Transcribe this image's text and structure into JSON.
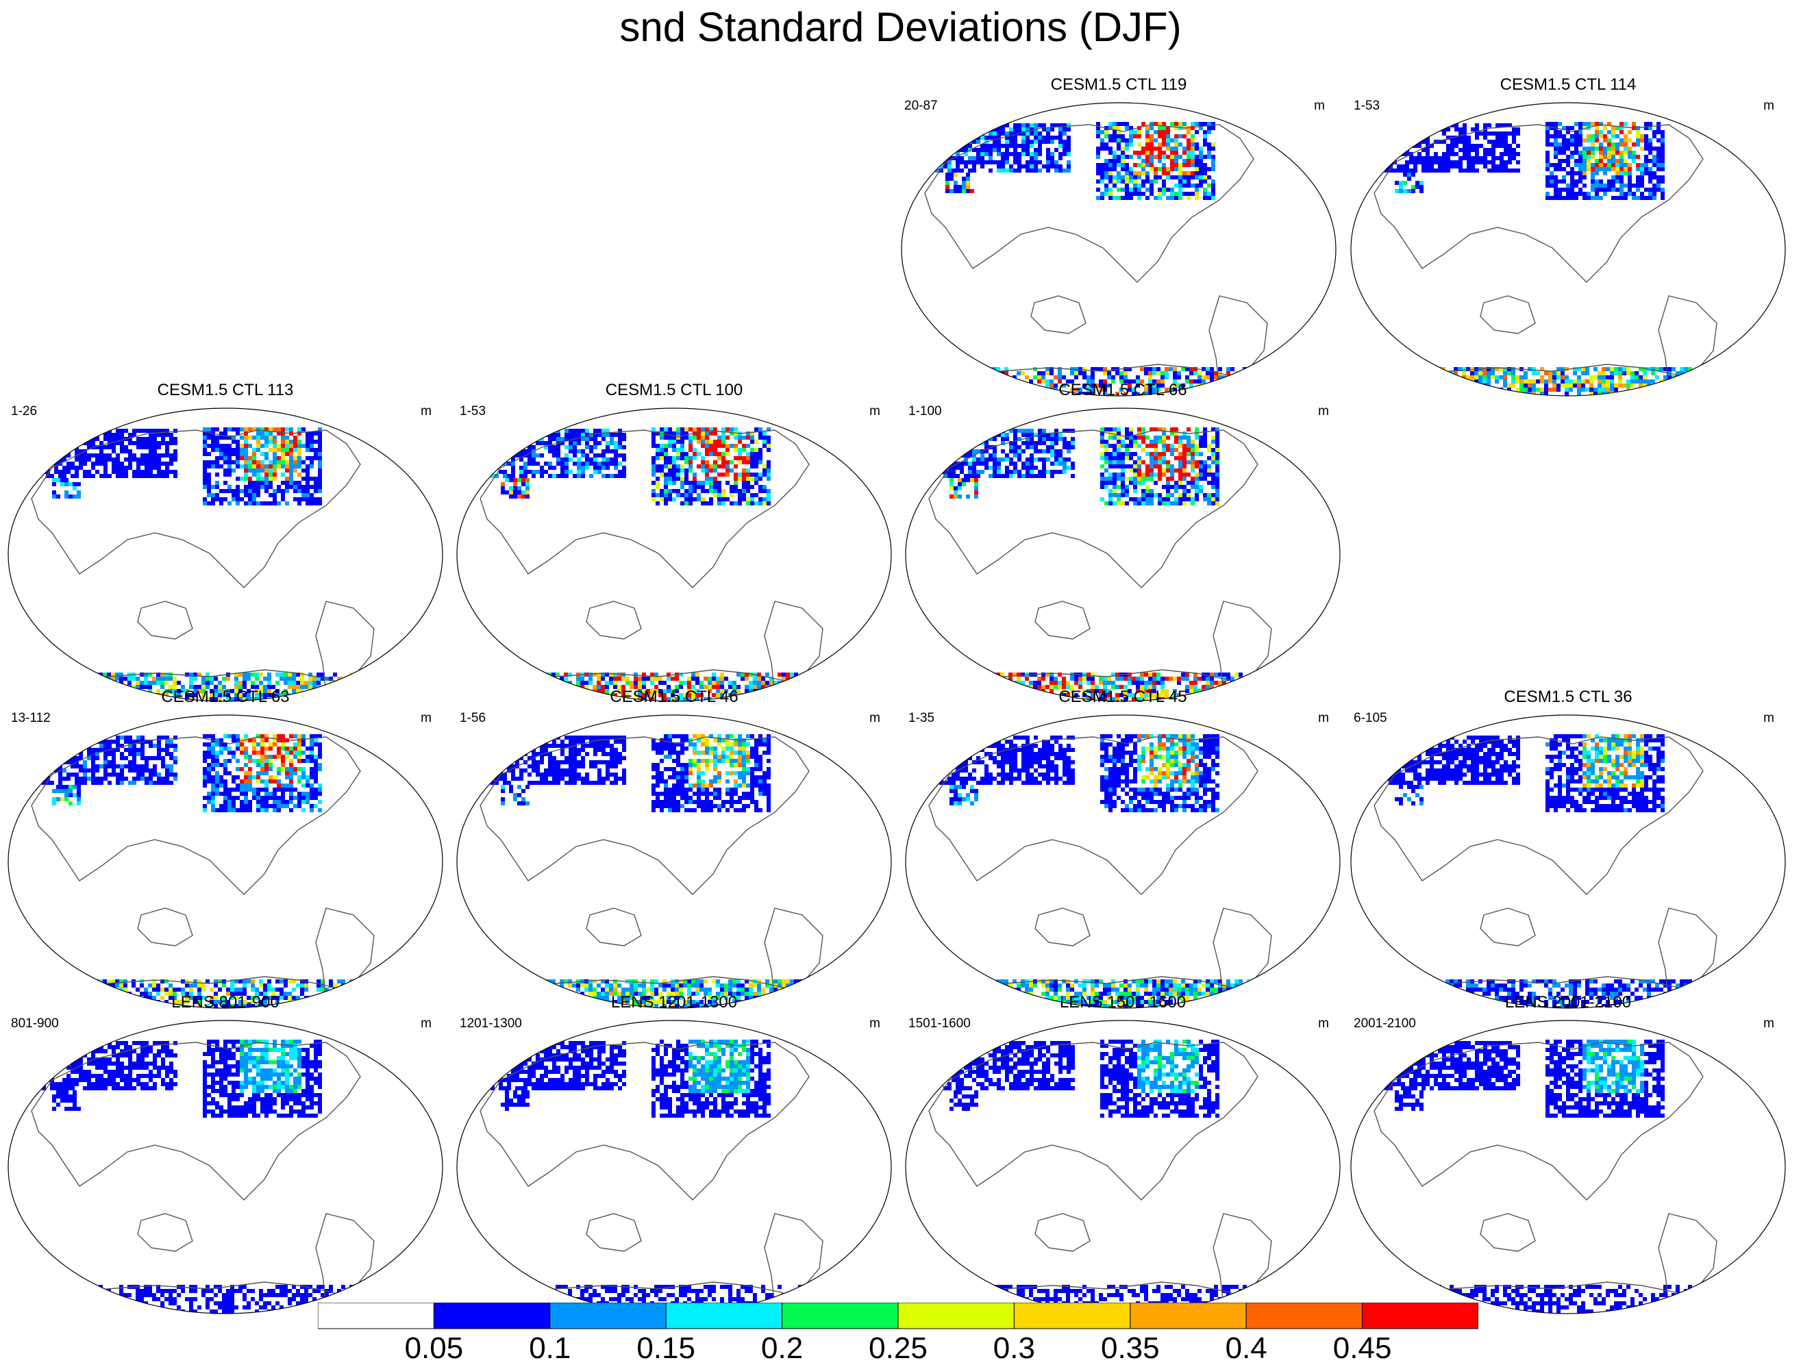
{
  "title": "snd Standard Deviations (DJF)",
  "colors": {
    "ocean": "#ffffff",
    "coast": "#555555",
    "levels": [
      "#ffffff",
      "#0000ff",
      "#0096ff",
      "#00f0ff",
      "#00fa50",
      "#dcff00",
      "#ffd700",
      "#ffa500",
      "#ff6400",
      "#ff0000"
    ]
  },
  "colorbar": {
    "labels": [
      "0.05",
      "0.1",
      "0.15",
      "0.2",
      "0.25",
      "0.3",
      "0.35",
      "0.4",
      "0.45"
    ]
  },
  "panels": [
    {
      "title": "CESM1.5 CTL 119",
      "left": "20-87",
      "right": "m",
      "intensity": 1.0,
      "antarctic": 0.35
    },
    {
      "title": "CESM1.5 CTL 114",
      "left": "1-53",
      "right": "m",
      "intensity": 0.7,
      "antarctic": 0.6
    },
    {
      "title": "CESM1.5 CTL 113",
      "left": "1-26",
      "right": "m",
      "intensity": 0.7,
      "antarctic": 0.55
    },
    {
      "title": "CESM1.5 CTL 100",
      "left": "1-53",
      "right": "m",
      "intensity": 1.0,
      "antarctic": 0.5
    },
    {
      "title": "CESM1.5 CTL 66",
      "left": "1-100",
      "right": "m",
      "intensity": 1.0,
      "antarctic": 0.5
    },
    {
      "title": "CESM1.5 CTL 63",
      "left": "13-112",
      "right": "m",
      "intensity": 0.8,
      "antarctic": 0.4
    },
    {
      "title": "CESM1.5 CTL 46",
      "left": "1-56",
      "right": "m",
      "intensity": 0.6,
      "antarctic": 0.6
    },
    {
      "title": "CESM1.5 CTL 45",
      "left": "1-35",
      "right": "m",
      "intensity": 0.65,
      "antarctic": 0.55
    },
    {
      "title": "CESM1.5 CTL 36",
      "left": "6-105",
      "right": "m",
      "intensity": 0.6,
      "antarctic": 0.3
    },
    {
      "title": "LENS 801-900",
      "left": "801-900",
      "right": "m",
      "intensity": 0.35,
      "antarctic": 0.15
    },
    {
      "title": "LENS 1201-1300",
      "left": "1201-1300",
      "right": "m",
      "intensity": 0.35,
      "antarctic": 0.15
    },
    {
      "title": "LENS 1501-1600",
      "left": "1501-1600",
      "right": "m",
      "intensity": 0.35,
      "antarctic": 0.15
    },
    {
      "title": "LENS 2001-2100",
      "left": "2001-2100",
      "right": "m",
      "intensity": 0.35,
      "antarctic": 0.15
    }
  ]
}
